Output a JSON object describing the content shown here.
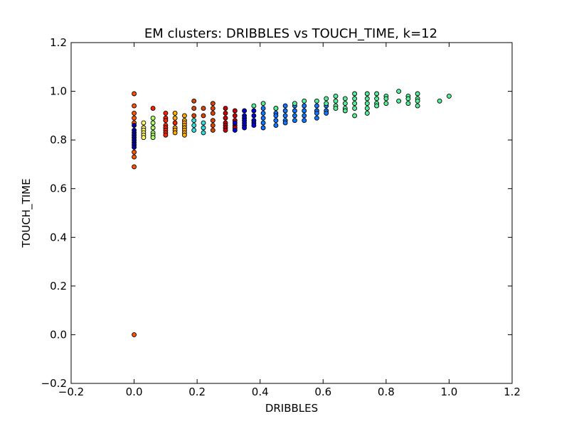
{
  "chart_data": {
    "type": "scatter",
    "title": "EM clusters: DRIBBLES vs TOUCH_TIME, k=12",
    "xlabel": "DRIBBLES",
    "ylabel": "TOUCH_TIME",
    "xlim": [
      -0.2,
      1.2
    ],
    "ylim": [
      -0.2,
      1.2
    ],
    "x_ticks": [
      -0.2,
      0.0,
      0.2,
      0.4,
      0.6,
      0.8,
      1.0,
      1.2
    ],
    "x_tick_labels": [
      "−0.2",
      "0.0",
      "0.2",
      "0.4",
      "0.6",
      "0.8",
      "1.0",
      "1.2"
    ],
    "y_ticks": [
      -0.2,
      0.0,
      0.2,
      0.4,
      0.6,
      0.8,
      1.0,
      1.2
    ],
    "y_tick_labels": [
      "−0.2",
      "0.0",
      "0.2",
      "0.4",
      "0.6",
      "0.8",
      "1.0",
      "1.2"
    ],
    "grid": false,
    "legend": "none",
    "series": [
      {
        "color": "#ff5500",
        "points": [
          [
            0.0,
            0.99
          ],
          [
            0.0,
            0.94
          ],
          [
            0.0,
            0.91
          ],
          [
            0.0,
            0.89
          ],
          [
            0.0,
            0.87
          ],
          [
            0.0,
            0.75
          ],
          [
            0.0,
            0.73
          ],
          [
            0.0,
            0.69
          ],
          [
            0.0,
            0.0
          ]
        ]
      },
      {
        "color": "#0000aa",
        "points": [
          [
            0.0,
            0.86
          ],
          [
            0.0,
            0.84
          ],
          [
            0.0,
            0.83
          ],
          [
            0.0,
            0.82
          ],
          [
            0.0,
            0.81
          ],
          [
            0.0,
            0.8
          ],
          [
            0.0,
            0.79
          ],
          [
            0.0,
            0.78
          ],
          [
            0.0,
            0.77
          ]
        ]
      },
      {
        "color": "#ffff66",
        "points": [
          [
            0.03,
            0.87
          ],
          [
            0.03,
            0.85
          ],
          [
            0.03,
            0.84
          ],
          [
            0.03,
            0.83
          ],
          [
            0.03,
            0.82
          ],
          [
            0.03,
            0.81
          ]
        ]
      },
      {
        "color": "#aaff66",
        "points": [
          [
            0.06,
            0.89
          ],
          [
            0.06,
            0.87
          ],
          [
            0.06,
            0.85
          ],
          [
            0.06,
            0.83
          ],
          [
            0.06,
            0.82
          ],
          [
            0.06,
            0.81
          ]
        ]
      },
      {
        "color": "#ff2200",
        "points": [
          [
            0.06,
            0.93
          ],
          [
            0.1,
            0.91
          ],
          [
            0.1,
            0.89
          ],
          [
            0.1,
            0.88
          ],
          [
            0.1,
            0.86
          ],
          [
            0.1,
            0.85
          ],
          [
            0.1,
            0.84
          ],
          [
            0.1,
            0.83
          ],
          [
            0.1,
            0.82
          ],
          [
            0.13,
            0.87
          ]
        ]
      },
      {
        "color": "#ffaa00",
        "points": [
          [
            0.13,
            0.91
          ],
          [
            0.13,
            0.89
          ],
          [
            0.13,
            0.85
          ],
          [
            0.13,
            0.84
          ],
          [
            0.13,
            0.83
          ],
          [
            0.16,
            0.9
          ],
          [
            0.16,
            0.88
          ],
          [
            0.16,
            0.87
          ],
          [
            0.16,
            0.86
          ],
          [
            0.16,
            0.85
          ],
          [
            0.16,
            0.84
          ],
          [
            0.16,
            0.83
          ],
          [
            0.16,
            0.82
          ]
        ]
      },
      {
        "color": "#33dddd",
        "points": [
          [
            0.19,
            0.88
          ],
          [
            0.19,
            0.86
          ],
          [
            0.19,
            0.84
          ],
          [
            0.22,
            0.87
          ],
          [
            0.22,
            0.85
          ],
          [
            0.22,
            0.83
          ]
        ]
      },
      {
        "color": "#dd4400",
        "points": [
          [
            0.19,
            0.96
          ],
          [
            0.19,
            0.93
          ],
          [
            0.19,
            0.9
          ],
          [
            0.22,
            0.93
          ],
          [
            0.22,
            0.9
          ],
          [
            0.25,
            0.95
          ],
          [
            0.25,
            0.93
          ],
          [
            0.25,
            0.91
          ],
          [
            0.25,
            0.88
          ],
          [
            0.25,
            0.86
          ],
          [
            0.25,
            0.84
          ]
        ]
      },
      {
        "color": "#cc0000",
        "points": [
          [
            0.29,
            0.93
          ],
          [
            0.29,
            0.91
          ],
          [
            0.29,
            0.89
          ],
          [
            0.29,
            0.87
          ],
          [
            0.29,
            0.86
          ],
          [
            0.29,
            0.85
          ],
          [
            0.29,
            0.84
          ],
          [
            0.32,
            0.92
          ],
          [
            0.32,
            0.9
          ],
          [
            0.32,
            0.88
          ],
          [
            0.32,
            0.86
          ],
          [
            0.32,
            0.85
          ]
        ]
      },
      {
        "color": "#0000dd",
        "points": [
          [
            0.32,
            0.87
          ],
          [
            0.32,
            0.84
          ],
          [
            0.35,
            0.92
          ],
          [
            0.35,
            0.9
          ],
          [
            0.35,
            0.89
          ],
          [
            0.35,
            0.88
          ],
          [
            0.35,
            0.87
          ],
          [
            0.35,
            0.86
          ],
          [
            0.35,
            0.85
          ],
          [
            0.38,
            0.92
          ],
          [
            0.38,
            0.9
          ],
          [
            0.38,
            0.88
          ],
          [
            0.38,
            0.87
          ],
          [
            0.38,
            0.86
          ]
        ]
      },
      {
        "color": "#1177ff",
        "points": [
          [
            0.41,
            0.93
          ],
          [
            0.41,
            0.91
          ],
          [
            0.41,
            0.89
          ],
          [
            0.41,
            0.87
          ],
          [
            0.41,
            0.85
          ],
          [
            0.45,
            0.93
          ],
          [
            0.45,
            0.91
          ],
          [
            0.45,
            0.9
          ],
          [
            0.45,
            0.88
          ],
          [
            0.45,
            0.86
          ],
          [
            0.48,
            0.94
          ],
          [
            0.48,
            0.92
          ],
          [
            0.48,
            0.9
          ],
          [
            0.48,
            0.88
          ],
          [
            0.48,
            0.87
          ],
          [
            0.51,
            0.94
          ],
          [
            0.51,
            0.92
          ],
          [
            0.51,
            0.9
          ],
          [
            0.51,
            0.88
          ],
          [
            0.54,
            0.94
          ],
          [
            0.54,
            0.92
          ],
          [
            0.54,
            0.9
          ],
          [
            0.54,
            0.88
          ],
          [
            0.58,
            0.94
          ],
          [
            0.58,
            0.92
          ],
          [
            0.58,
            0.91
          ],
          [
            0.58,
            0.89
          ],
          [
            0.61,
            0.94
          ],
          [
            0.61,
            0.92
          ],
          [
            0.61,
            0.91
          ]
        ]
      },
      {
        "color": "#55ee99",
        "points": [
          [
            0.38,
            0.94
          ],
          [
            0.41,
            0.95
          ],
          [
            0.45,
            0.93
          ],
          [
            0.51,
            0.95
          ],
          [
            0.54,
            0.96
          ],
          [
            0.58,
            0.96
          ],
          [
            0.61,
            0.97
          ],
          [
            0.61,
            0.95
          ],
          [
            0.64,
            0.98
          ],
          [
            0.64,
            0.96
          ],
          [
            0.64,
            0.94
          ],
          [
            0.64,
            0.93
          ],
          [
            0.67,
            0.97
          ],
          [
            0.67,
            0.95
          ],
          [
            0.67,
            0.93
          ],
          [
            0.67,
            0.92
          ],
          [
            0.7,
            0.99
          ],
          [
            0.7,
            0.97
          ],
          [
            0.7,
            0.95
          ],
          [
            0.7,
            0.93
          ],
          [
            0.7,
            0.9
          ],
          [
            0.74,
            0.99
          ],
          [
            0.74,
            0.97
          ],
          [
            0.74,
            0.95
          ],
          [
            0.74,
            0.93
          ],
          [
            0.74,
            0.91
          ],
          [
            0.77,
            0.99
          ],
          [
            0.77,
            0.97
          ],
          [
            0.77,
            0.95
          ],
          [
            0.77,
            0.94
          ],
          [
            0.8,
            0.98
          ],
          [
            0.8,
            0.97
          ],
          [
            0.8,
            0.95
          ],
          [
            0.84,
            1.0
          ],
          [
            0.84,
            0.96
          ],
          [
            0.87,
            0.98
          ],
          [
            0.87,
            0.97
          ],
          [
            0.87,
            0.95
          ],
          [
            0.9,
            0.99
          ],
          [
            0.9,
            0.97
          ],
          [
            0.9,
            0.96
          ],
          [
            0.9,
            0.94
          ],
          [
            0.97,
            0.96
          ],
          [
            1.0,
            0.98
          ]
        ]
      }
    ]
  }
}
